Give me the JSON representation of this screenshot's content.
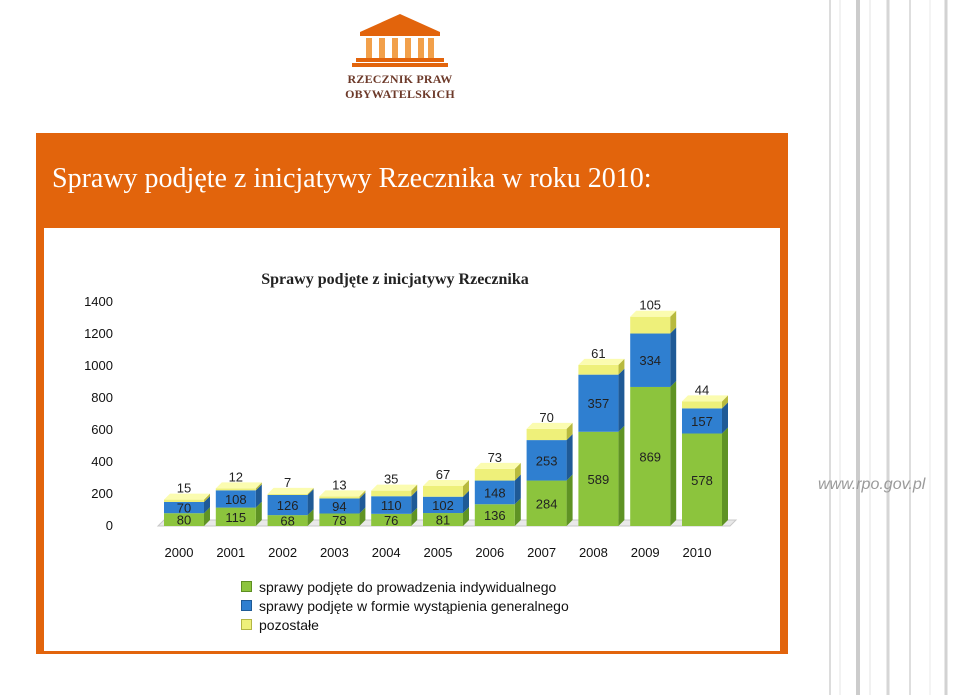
{
  "logo": {
    "text": "RZECZNIK PRAW OBYWATELSKICH"
  },
  "banner": {
    "title": "Sprawy podjęte z inicjatywy Rzecznika w roku 2010:"
  },
  "website": "www.rpo.gov.pl",
  "colors": {
    "orange": "#e2640c",
    "green": "#8cc43d",
    "blue": "#2f7fd0",
    "yellow": "#eef07a"
  },
  "chart_data": {
    "type": "bar",
    "stacked": true,
    "title": "Sprawy podjęte z inicjatywy Rzecznika",
    "categories": [
      "2000",
      "2001",
      "2002",
      "2003",
      "2004",
      "2005",
      "2006",
      "2007",
      "2008",
      "2009",
      "2010"
    ],
    "series": [
      {
        "name": "sprawy podjęte do prowadzenia indywidualnego",
        "color": "#8cc43d",
        "values": [
          80,
          115,
          68,
          78,
          76,
          81,
          136,
          284,
          589,
          869,
          578
        ]
      },
      {
        "name": "sprawy podjęte w formie wystąpienia generalnego",
        "color": "#2f7fd0",
        "values": [
          70,
          108,
          126,
          94,
          110,
          102,
          148,
          253,
          357,
          334,
          157
        ]
      },
      {
        "name": "pozostałe",
        "color": "#eef07a",
        "values": [
          15,
          12,
          7,
          13,
          35,
          67,
          73,
          70,
          61,
          105,
          44
        ]
      }
    ],
    "yticks": [
      0,
      200,
      400,
      600,
      800,
      1000,
      1200,
      1400
    ],
    "ylim": [
      0,
      1400
    ],
    "legend_position": "bottom",
    "grid": false
  }
}
